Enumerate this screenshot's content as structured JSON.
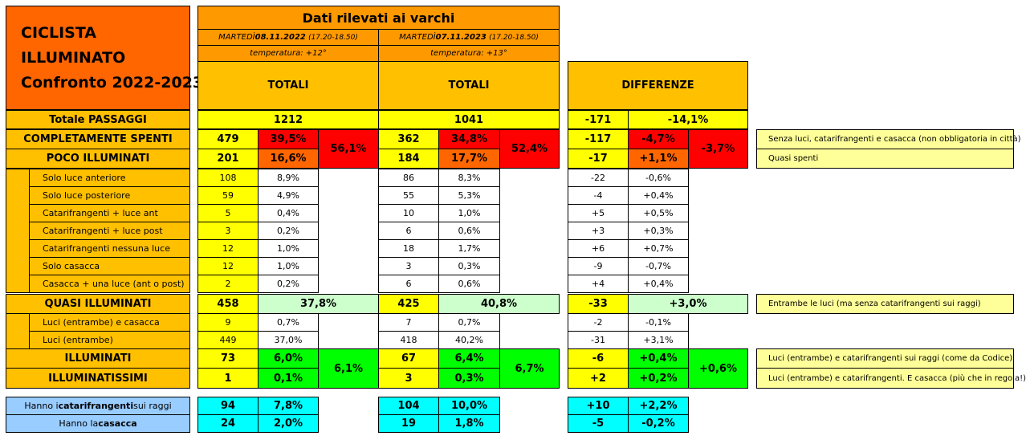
{
  "title": {
    "line1": "CICLISTA",
    "line2": "ILLUMINATO",
    "line3": "Confronto 2022-2023"
  },
  "header": {
    "main": "Dati rilevati ai varchi",
    "d1_prefix": "MARTEDÌ ",
    "d1_date": "08.11.2022",
    "d1_time": "(17.20-18.50)",
    "d2_prefix": "MARTEDÌ ",
    "d2_date": "07.11.2023",
    "d2_time": "(17.20-18.50)",
    "t1": "temperatura: +12°",
    "t2": "temperatura: +13°",
    "totali1": "TOTALI",
    "totali2": "TOTALI",
    "diff": "DIFFERENZE"
  },
  "total": {
    "label": "Totale PASSAGGI",
    "v22": "1212",
    "v23": "1041",
    "d": "-171",
    "dp": "-14,1%"
  },
  "main_rows": [
    {
      "label": "COMPLETAMENTE SPENTI",
      "n22": "479",
      "p22": "39,5%",
      "n23": "362",
      "p23": "34,8%",
      "dn": "-117",
      "dp": "-4,7%",
      "note": "Senza luci, catarifrangenti e casacca (non obbligatoria in città)"
    },
    {
      "label": "POCO ILLUMINATI",
      "n22": "201",
      "p22": "16,6%",
      "n23": "184",
      "p23": "17,7%",
      "dn": "-17",
      "dp": "+1,1%",
      "note": "Quasi spenti"
    }
  ],
  "group1": {
    "s22": "56,1%",
    "s23": "52,4%",
    "sd": "-3,7%"
  },
  "sub_rows": [
    {
      "label": "Solo luce anteriore",
      "n22": "108",
      "p22": "8,9%",
      "n23": "86",
      "p23": "8,3%",
      "dn": "-22",
      "dp": "-0,6%"
    },
    {
      "label": "Solo luce posteriore",
      "n22": "59",
      "p22": "4,9%",
      "n23": "55",
      "p23": "5,3%",
      "dn": "-4",
      "dp": "+0,4%"
    },
    {
      "label": "Catarifrangenti + luce ant",
      "n22": "5",
      "p22": "0,4%",
      "n23": "10",
      "p23": "1,0%",
      "dn": "+5",
      "dp": "+0,5%"
    },
    {
      "label": "Catarifrangenti + luce post",
      "n22": "3",
      "p22": "0,2%",
      "n23": "6",
      "p23": "0,6%",
      "dn": "+3",
      "dp": "+0,3%"
    },
    {
      "label": "Catarifrangenti nessuna luce",
      "n22": "12",
      "p22": "1,0%",
      "n23": "18",
      "p23": "1,7%",
      "dn": "+6",
      "dp": "+0,7%"
    },
    {
      "label": "Solo casacca",
      "n22": "12",
      "p22": "1,0%",
      "n23": "3",
      "p23": "0,3%",
      "dn": "-9",
      "dp": "-0,7%"
    },
    {
      "label": "Casacca + una luce (ant o post)",
      "n22": "2",
      "p22": "0,2%",
      "n23": "6",
      "p23": "0,6%",
      "dn": "+4",
      "dp": "+0,4%"
    }
  ],
  "quasi": {
    "label": "QUASI ILLUMINATI",
    "n22": "458",
    "p22": "37,8%",
    "n23": "425",
    "p23": "40,8%",
    "dn": "-33",
    "dp": "+3,0%",
    "note": "Entrambe le luci (ma senza catarifrangenti sui raggi)"
  },
  "quasi_sub": [
    {
      "label": "Luci (entrambe) e casacca",
      "n22": "9",
      "p22": "0,7%",
      "n23": "7",
      "p23": "0,7%",
      "dn": "-2",
      "dp": "-0,1%"
    },
    {
      "label": "Luci (entrambe)",
      "n22": "449",
      "p22": "37,0%",
      "n23": "418",
      "p23": "40,2%",
      "dn": "-31",
      "dp": "+3,1%"
    }
  ],
  "ill_rows": [
    {
      "label": "ILLUMINATI",
      "n22": "73",
      "p22": "6,0%",
      "n23": "67",
      "p23": "6,4%",
      "dn": "-6",
      "dp": "+0,4%",
      "note": "Luci (entrambe) e catarifrangenti sui raggi (come da Codice)"
    },
    {
      "label": "ILLUMINATISSIMI",
      "n22": "1",
      "p22": "0,1%",
      "n23": "3",
      "p23": "0,3%",
      "dn": "+2",
      "dp": "+0,2%",
      "note": "Luci (entrambe) e catarifrangenti. E casacca (più che in regola!)"
    }
  ],
  "group2": {
    "s22": "6,1%",
    "s23": "6,7%",
    "sd": "+0,6%"
  },
  "extra": [
    {
      "pre": "Hanno i ",
      "bold": "catarifrangenti",
      "post": " sui raggi",
      "n22": "94",
      "p22": "7,8%",
      "n23": "104",
      "p23": "10,0%",
      "dn": "+10",
      "dp": "+2,2%"
    },
    {
      "pre": "Hanno la ",
      "bold": "casacca",
      "post": "",
      "n22": "24",
      "p22": "2,0%",
      "n23": "19",
      "p23": "1,8%",
      "dn": "-5",
      "dp": "-0,2%"
    }
  ]
}
